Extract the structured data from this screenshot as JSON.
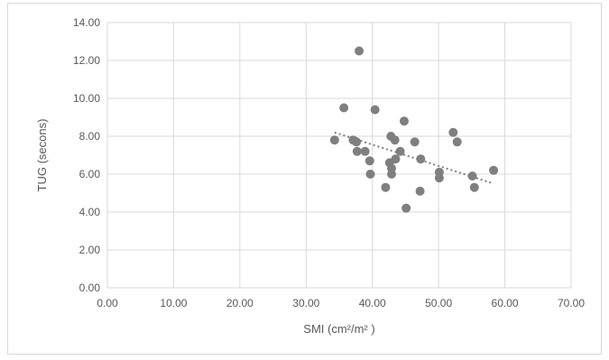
{
  "chart_data": {
    "type": "scatter",
    "xlabel": "SMI (cm²/m² )",
    "ylabel": "TUG (secons)",
    "xlim": [
      0,
      70
    ],
    "ylim": [
      0,
      14
    ],
    "x_ticks": [
      "0.00",
      "10.00",
      "20.00",
      "30.00",
      "40.00",
      "50.00",
      "60.00",
      "70.00"
    ],
    "y_ticks": [
      "0.00",
      "2.00",
      "4.00",
      "6.00",
      "8.00",
      "10.00",
      "12.00",
      "14.00"
    ],
    "grid": true,
    "legend": "none",
    "marker_color": "#7f7f7f",
    "trendline_color": "#7f7f7f",
    "trendline": {
      "style": "dotted",
      "x": [
        34.3,
        58.3
      ],
      "y": [
        8.2,
        5.5
      ]
    },
    "points": [
      {
        "x": 34.3,
        "y": 7.8
      },
      {
        "x": 35.7,
        "y": 9.5
      },
      {
        "x": 37.1,
        "y": 7.8
      },
      {
        "x": 37.6,
        "y": 7.7
      },
      {
        "x": 37.7,
        "y": 7.2
      },
      {
        "x": 38.0,
        "y": 12.5
      },
      {
        "x": 38.9,
        "y": 7.2
      },
      {
        "x": 39.6,
        "y": 6.7
      },
      {
        "x": 39.7,
        "y": 6.0
      },
      {
        "x": 40.4,
        "y": 9.4
      },
      {
        "x": 42.0,
        "y": 5.3
      },
      {
        "x": 42.6,
        "y": 6.6
      },
      {
        "x": 42.8,
        "y": 8.0
      },
      {
        "x": 42.9,
        "y": 6.3
      },
      {
        "x": 42.9,
        "y": 6.0
      },
      {
        "x": 43.4,
        "y": 7.8
      },
      {
        "x": 43.5,
        "y": 6.8
      },
      {
        "x": 44.2,
        "y": 7.2
      },
      {
        "x": 44.8,
        "y": 8.8
      },
      {
        "x": 45.1,
        "y": 4.2
      },
      {
        "x": 46.4,
        "y": 7.7
      },
      {
        "x": 47.2,
        "y": 5.1
      },
      {
        "x": 47.3,
        "y": 6.8
      },
      {
        "x": 50.1,
        "y": 5.8
      },
      {
        "x": 50.1,
        "y": 6.1
      },
      {
        "x": 52.2,
        "y": 8.2
      },
      {
        "x": 52.8,
        "y": 7.7
      },
      {
        "x": 55.1,
        "y": 5.9
      },
      {
        "x": 55.4,
        "y": 5.3
      },
      {
        "x": 58.3,
        "y": 6.2
      }
    ]
  }
}
